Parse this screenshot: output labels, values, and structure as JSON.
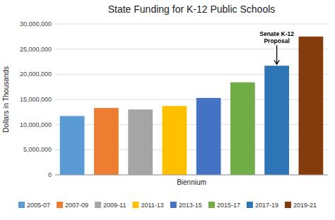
{
  "chart_data": {
    "type": "bar",
    "title": "State Funding for K-12 Public Schools",
    "xlabel": "Biennium",
    "ylabel": "Dollars in Thousands",
    "categories": [
      "2005-07",
      "2007-09",
      "2009-11",
      "2011-13",
      "2013-15",
      "2015-17",
      "2017-19",
      "2019-21"
    ],
    "values": [
      11700000,
      13300000,
      13000000,
      13700000,
      15300000,
      18400000,
      21700000,
      27500000
    ],
    "colors": [
      "#5B9BD5",
      "#ED7D31",
      "#A5A5A5",
      "#FFC000",
      "#4472C4",
      "#70AD47",
      "#2E75B6",
      "#843C0C"
    ],
    "ylim": [
      0,
      30000000
    ],
    "yticks": [
      0,
      {
        "value": 5000000,
        "label": "5,000,000"
      },
      {
        "value": 10000000,
        "label": "10,000,000"
      },
      {
        "value": 15000000,
        "label": "15,000,000"
      },
      {
        "value": 20000000,
        "label": "20,000,000"
      },
      {
        "value": 25000000,
        "label": "25,000,000"
      },
      {
        "value": 30000000,
        "label": "30,000,000"
      }
    ],
    "grid": true,
    "legend": "bottom",
    "tick_labels": "y",
    "annotations": [
      {
        "text": "Senate K-12\nProposal",
        "x": "2017-19",
        "y": 21700000
      }
    ]
  }
}
